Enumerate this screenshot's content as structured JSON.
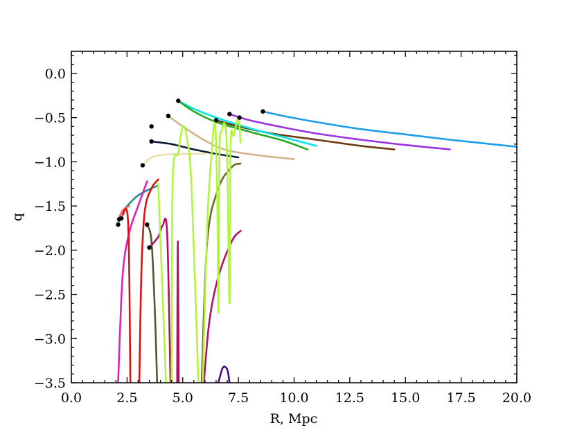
{
  "chart_data": {
    "type": "line",
    "title": "",
    "xlabel": "R, Mpc",
    "ylabel": "q",
    "xlim": [
      0.0,
      20.0
    ],
    "ylim": [
      -3.5,
      0.25
    ],
    "x_ticks": [
      "0.0",
      "2.5",
      "5.0",
      "7.5",
      "10.0",
      "12.5",
      "15.0",
      "17.5",
      "20.0"
    ],
    "y_ticks": [
      "0.0",
      "−0.5",
      "−1.0",
      "−1.5",
      "−2.0",
      "−2.5",
      "−3.0",
      "−3.5"
    ],
    "x_tick_values": [
      0,
      2.5,
      5,
      7.5,
      10,
      12.5,
      15,
      17.5,
      20
    ],
    "y_tick_values": [
      0,
      -0.5,
      -1.0,
      -1.5,
      -2.0,
      -2.5,
      -3.0,
      -3.5
    ],
    "grid": false,
    "series": [
      {
        "color": "#1a9ee8",
        "points": [
          [
            8.6,
            -0.43
          ],
          [
            9.5,
            -0.48
          ],
          [
            11,
            -0.55
          ],
          [
            13,
            -0.63
          ],
          [
            15,
            -0.69
          ],
          [
            17,
            -0.75
          ],
          [
            20,
            -0.83
          ]
        ]
      },
      {
        "color": "#9b30e0",
        "points": [
          [
            7.1,
            -0.46
          ],
          [
            8,
            -0.53
          ],
          [
            9.5,
            -0.61
          ],
          [
            11,
            -0.68
          ],
          [
            13,
            -0.75
          ],
          [
            15,
            -0.81
          ],
          [
            17,
            -0.86
          ]
        ]
      },
      {
        "color": "#6b3a10",
        "points": [
          [
            6.5,
            -0.53
          ],
          [
            7.5,
            -0.6
          ],
          [
            9,
            -0.68
          ],
          [
            11,
            -0.75
          ],
          [
            13,
            -0.82
          ],
          [
            14.5,
            -0.86
          ]
        ]
      },
      {
        "color": "#00e5e5",
        "points": [
          [
            4.8,
            -0.31
          ],
          [
            5.5,
            -0.4
          ],
          [
            6.5,
            -0.5
          ],
          [
            8,
            -0.62
          ],
          [
            9.5,
            -0.72
          ],
          [
            11,
            -0.82
          ]
        ]
      },
      {
        "color": "#22aa22",
        "points": [
          [
            4.8,
            -0.31
          ],
          [
            5.5,
            -0.43
          ],
          [
            6.5,
            -0.55
          ],
          [
            8,
            -0.66
          ],
          [
            9.5,
            -0.76
          ],
          [
            10.6,
            -0.86
          ]
        ]
      },
      {
        "color": "#d2b48c",
        "points": [
          [
            4.35,
            -0.48
          ],
          [
            5,
            -0.6
          ],
          [
            6,
            -0.76
          ],
          [
            7,
            -0.87
          ],
          [
            8.5,
            -0.93
          ],
          [
            10,
            -0.97
          ]
        ]
      },
      {
        "color": "#0d1b3a",
        "points": [
          [
            3.6,
            -0.77
          ],
          [
            4.5,
            -0.8
          ],
          [
            5.5,
            -0.86
          ],
          [
            6.5,
            -0.91
          ],
          [
            7.5,
            -0.95
          ]
        ]
      },
      {
        "color": "#eadfb0",
        "points": [
          [
            3.2,
            -1.04
          ],
          [
            3.6,
            -0.95
          ],
          [
            4.2,
            -0.92
          ],
          [
            5,
            -0.91
          ],
          [
            6,
            -0.91
          ]
        ]
      },
      {
        "color": "#2a8f8f",
        "points": [
          [
            2.1,
            -1.71
          ],
          [
            2.2,
            -1.6
          ],
          [
            2.5,
            -1.5
          ],
          [
            3,
            -1.38
          ],
          [
            3.6,
            -1.3
          ],
          [
            3.9,
            -1.27
          ]
        ]
      },
      {
        "color": "#f07060",
        "points": [
          [
            2.15,
            -1.65
          ],
          [
            2.3,
            -1.55
          ],
          [
            2.6,
            -1.5
          ]
        ]
      },
      {
        "color": "#e020c0",
        "points": [
          [
            2.1,
            -3.5
          ],
          [
            2.3,
            -2.3
          ],
          [
            2.6,
            -1.8
          ],
          [
            3,
            -1.5
          ],
          [
            3.4,
            -1.22
          ]
        ]
      },
      {
        "color": "#dd1010",
        "points": [
          [
            2.3,
            -1.6
          ],
          [
            2.55,
            -1.7
          ],
          [
            2.65,
            -3.5
          ]
        ]
      },
      {
        "color": "#dd1010",
        "points": [
          [
            3.05,
            -3.5
          ],
          [
            3.15,
            -2.2
          ],
          [
            3.3,
            -1.55
          ],
          [
            3.6,
            -1.3
          ],
          [
            3.9,
            -1.2
          ]
        ]
      },
      {
        "color": "#5a5230",
        "points": [
          [
            3.4,
            -1.71
          ],
          [
            3.6,
            -1.9
          ],
          [
            3.75,
            -2.7
          ],
          [
            3.85,
            -3.5
          ]
        ]
      },
      {
        "color": "#b0106a",
        "points": [
          [
            3.5,
            -1.97
          ],
          [
            3.9,
            -1.85
          ],
          [
            4.1,
            -1.72
          ],
          [
            4.3,
            -1.8
          ],
          [
            4.45,
            -3.5
          ]
        ]
      },
      {
        "color": "#b0106a",
        "points": [
          [
            4.75,
            -3.5
          ],
          [
            4.78,
            -1.9
          ],
          [
            4.82,
            -3.5
          ]
        ]
      },
      {
        "color": "#6b6b22",
        "points": [
          [
            5.85,
            -3.5
          ],
          [
            6.1,
            -1.9
          ],
          [
            6.6,
            -1.3
          ],
          [
            7.2,
            -1.06
          ],
          [
            7.6,
            -1.02
          ]
        ]
      },
      {
        "color": "#b0106a",
        "points": [
          [
            5.95,
            -3.5
          ],
          [
            6.2,
            -2.8
          ],
          [
            6.6,
            -2.3
          ],
          [
            7.2,
            -1.9
          ],
          [
            7.6,
            -1.78
          ]
        ]
      },
      {
        "color": "#4b0a8a",
        "points": [
          [
            6.6,
            -3.5
          ],
          [
            6.8,
            -3.33
          ],
          [
            7.0,
            -3.35
          ],
          [
            7.1,
            -3.5
          ]
        ]
      },
      {
        "color": "#b2f540",
        "points": [
          [
            3.9,
            -1.25
          ],
          [
            4.25,
            -3.5
          ]
        ]
      },
      {
        "color": "#b2f540",
        "points": [
          [
            4.5,
            -3.5
          ],
          [
            4.55,
            -1.2
          ],
          [
            4.8,
            -0.9
          ],
          [
            5.0,
            -0.6
          ],
          [
            5.2,
            -0.75
          ],
          [
            5.4,
            -1.3
          ],
          [
            5.7,
            -3.5
          ]
        ]
      },
      {
        "color": "#b2f540",
        "points": [
          [
            5.9,
            -3.5
          ],
          [
            6.1,
            -1.7
          ],
          [
            6.3,
            -0.9
          ],
          [
            6.45,
            -0.55
          ],
          [
            6.55,
            -1.4
          ],
          [
            6.6,
            -2.7
          ],
          [
            6.65,
            -0.9
          ],
          [
            6.75,
            -0.65
          ],
          [
            6.9,
            -0.58
          ],
          [
            7.0,
            -1.0
          ],
          [
            7.1,
            -2.6
          ],
          [
            7.15,
            -0.8
          ],
          [
            7.3,
            -0.7
          ],
          [
            7.5,
            -0.5
          ],
          [
            7.6,
            -0.78
          ]
        ]
      }
    ],
    "markers": [
      [
        8.6,
        -0.43
      ],
      [
        7.1,
        -0.46
      ],
      [
        7.55,
        -0.5
      ],
      [
        6.5,
        -0.53
      ],
      [
        4.8,
        -0.31
      ],
      [
        4.35,
        -0.48
      ],
      [
        3.6,
        -0.6
      ],
      [
        3.6,
        -0.77
      ],
      [
        3.2,
        -1.04
      ],
      [
        2.1,
        -1.71
      ],
      [
        2.15,
        -1.65
      ],
      [
        2.25,
        -1.64
      ],
      [
        3.4,
        -1.71
      ],
      [
        3.5,
        -1.97
      ]
    ]
  }
}
